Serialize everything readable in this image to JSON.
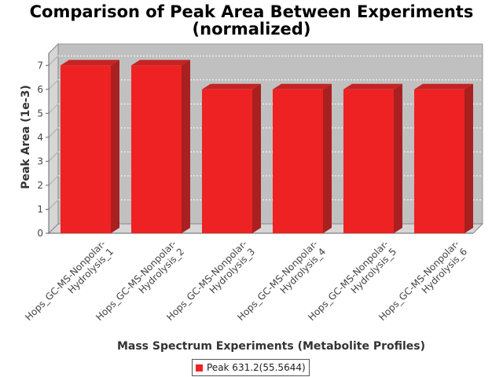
{
  "chart_data": {
    "type": "bar",
    "title_line1": "Comparison of Peak Area Between Experiments",
    "title_line2": "(normalized)",
    "xlabel": "Mass Spectrum Experiments (Metabolite Profiles)",
    "ylabel": "Peak Area (1e-3)",
    "ylim": [
      0,
      7.5
    ],
    "yticks": [
      "0",
      "1",
      "2",
      "3",
      "4",
      "5",
      "6",
      "7"
    ],
    "categories": [
      {
        "line1": "Hops_GC-MS-Nonpolar-",
        "line2": "Hydrolysis_1"
      },
      {
        "line1": "Hops_GC-MS-Nonpolar-",
        "line2": "Hydrolysis_2"
      },
      {
        "line1": "Hops_GC-MS-Nonpolar-",
        "line2": "Hydrolysis_3"
      },
      {
        "line1": "Hops_GC-MS-Nonpolar-",
        "line2": "Hydrolysis_4"
      },
      {
        "line1": "Hops_GC-MS-Nonpolar-",
        "line2": "Hydrolysis_5"
      },
      {
        "line1": "Hops_GC-MS-Nonpolar-",
        "line2": "Hydrolysis_6"
      }
    ],
    "series": [
      {
        "name": "Peak 631.2(55.5644)",
        "values": [
          7.0,
          7.0,
          6.0,
          6.0,
          6.0,
          6.0
        ]
      }
    ],
    "grid": true,
    "legend_position": "bottom",
    "colors": {
      "bar_front": "#ee2222",
      "bar_top": "#c42424",
      "bar_side": "#a82020",
      "plot_bg": "#c0c0c0",
      "wall": "#d6d6d6",
      "grid": "#ffffff"
    }
  }
}
